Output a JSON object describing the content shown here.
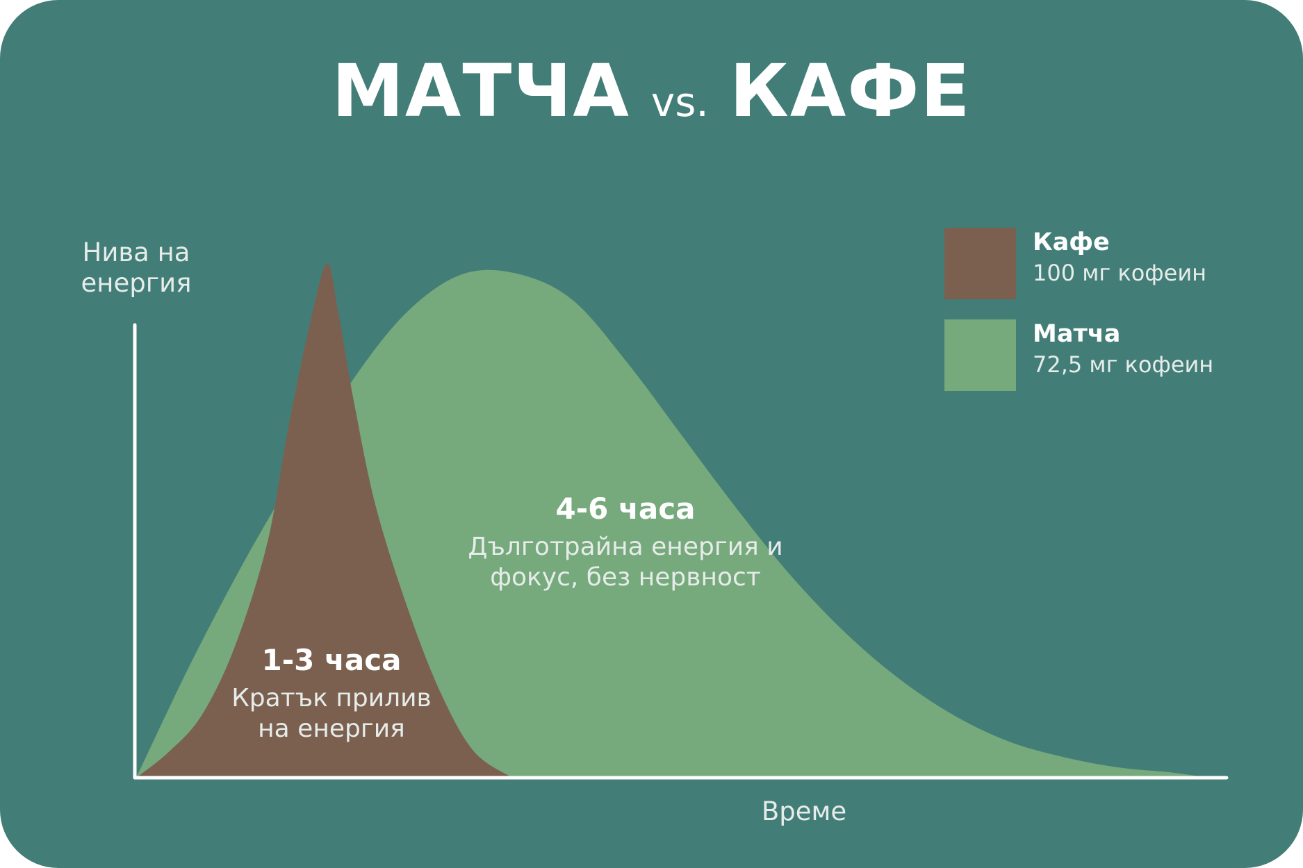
{
  "title": {
    "left": "МАТЧА",
    "vs": "vs.",
    "right": "КАФЕ"
  },
  "colors": {
    "background": "#427e77",
    "coffee": "#7b6050",
    "matcha": "#76a97c",
    "axis": "#ffffff",
    "label": "#e6ece9"
  },
  "chart_data": {
    "type": "area",
    "xlabel": "Време",
    "ylabel": [
      "Нива на",
      "енергия"
    ],
    "xlim": [
      0,
      100
    ],
    "ylim": [
      0,
      100
    ],
    "grid": false,
    "legend_position": "top-right",
    "series": [
      {
        "name": "Кафе",
        "subtitle": "100 мг кофеин",
        "color": "#7b6050",
        "x": [
          0,
          3,
          6,
          9,
          12,
          14,
          16,
          17.5,
          18.5,
          20,
          22,
          25,
          28,
          31,
          34.5
        ],
        "y": [
          0,
          5,
          12,
          25,
          45,
          68,
          88,
          99,
          90,
          72,
          52,
          32,
          16,
          5,
          0
        ]
      },
      {
        "name": "Матча",
        "subtitle": "72,5 мг кофеин",
        "color": "#76a97c",
        "x": [
          0,
          5,
          10,
          15,
          20,
          25,
          30,
          35,
          40,
          45,
          50,
          55,
          60,
          65,
          70,
          75,
          80,
          85,
          90,
          95,
          98.3
        ],
        "y": [
          0,
          22,
          42,
          60,
          77,
          90,
          97,
          97,
          92,
          80,
          66,
          52,
          39,
          28,
          19,
          12,
          7,
          4,
          2,
          1,
          0
        ]
      }
    ],
    "annotations": [
      {
        "series": "Кафе",
        "heading": "1-3 часа",
        "lines": [
          "Кратък прилив",
          "на енергия"
        ]
      },
      {
        "series": "Матча",
        "heading": "4-6 часа",
        "lines": [
          "Дълготрайна енергия и",
          "фокус, без нервност"
        ]
      }
    ]
  }
}
